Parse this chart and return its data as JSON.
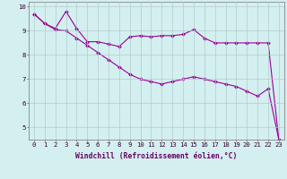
{
  "line1_x": [
    0,
    1,
    2,
    3,
    4,
    5,
    6,
    7,
    8,
    9,
    10,
    11,
    12,
    13,
    14,
    15,
    16,
    17,
    18,
    19,
    20,
    21,
    22,
    23
  ],
  "line1_y": [
    9.7,
    9.3,
    9.1,
    9.8,
    9.1,
    8.55,
    8.55,
    8.45,
    8.35,
    8.75,
    8.8,
    8.75,
    8.8,
    8.8,
    8.85,
    9.05,
    8.7,
    8.5,
    8.5,
    8.5,
    8.5,
    8.5,
    8.5,
    4.5
  ],
  "line2_x": [
    0,
    1,
    2,
    3,
    4,
    5,
    6,
    7,
    8,
    9,
    10,
    11,
    12,
    13,
    14,
    15,
    16,
    17,
    18,
    19,
    20,
    21,
    22,
    23
  ],
  "line2_y": [
    9.7,
    9.3,
    9.05,
    9.0,
    8.7,
    8.4,
    8.1,
    7.8,
    7.5,
    7.2,
    7.0,
    6.9,
    6.8,
    6.9,
    7.0,
    7.1,
    7.0,
    6.9,
    6.8,
    6.7,
    6.5,
    6.3,
    6.6,
    4.5
  ],
  "line_color": "#990099",
  "bg_color": "#d4efef",
  "grid_color": "#b0cccc",
  "xlabel": "Windchill (Refroidissement éolien,°C)",
  "xlabel_color": "#660066",
  "tick_color": "#330033",
  "ylim": [
    4.5,
    10.2
  ],
  "xlim": [
    -0.5,
    23.5
  ],
  "yticks": [
    5,
    6,
    7,
    8,
    9,
    10
  ],
  "xticks": [
    0,
    1,
    2,
    3,
    4,
    5,
    6,
    7,
    8,
    9,
    10,
    11,
    12,
    13,
    14,
    15,
    16,
    17,
    18,
    19,
    20,
    21,
    22,
    23
  ]
}
